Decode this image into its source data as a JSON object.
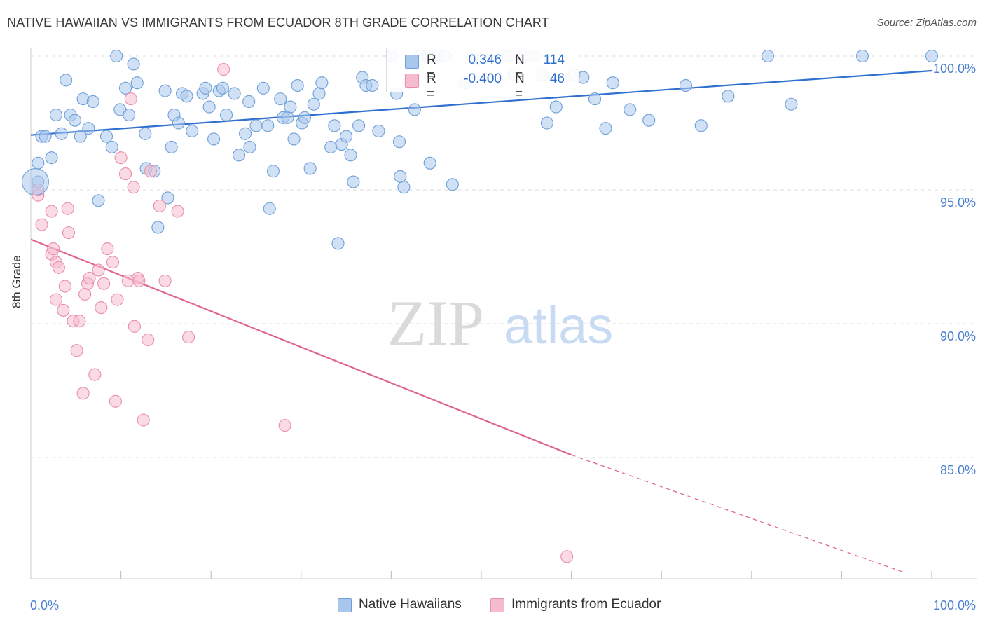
{
  "title": "NATIVE HAWAIIAN VS IMMIGRANTS FROM ECUADOR 8TH GRADE CORRELATION CHART",
  "source": "Source: ZipAtlas.com",
  "watermark": {
    "zip": "ZIP",
    "atlas": "atlas"
  },
  "colors": {
    "blue_fill": "#a9c6ec",
    "blue_stroke": "#6f9fd8",
    "blue_line": "#2f6fcf",
    "pink_fill": "#f5bccd",
    "pink_stroke": "#e98ea9",
    "pink_line": "#e06690",
    "tick_label": "#4a7fcf",
    "grid": "#dddddd"
  },
  "stats": [
    {
      "r_label": "R =",
      "r": "0.346",
      "n_label": "N =",
      "n": "114",
      "series": "blue"
    },
    {
      "r_label": "R =",
      "r": "-0.400",
      "n_label": "N =",
      "n": "46",
      "series": "pink"
    }
  ],
  "chart_data": {
    "type": "scatter",
    "title": "NATIVE HAWAIIAN VS IMMIGRANTS FROM ECUADOR 8TH GRADE CORRELATION CHART",
    "xlabel": "",
    "ylabel": "8th Grade",
    "xlim": [
      0,
      100
    ],
    "ylim": [
      80.5,
      100.8
    ],
    "x_tick_labels": [
      {
        "value": 0,
        "label": "0.0%"
      },
      {
        "value": 100,
        "label": "100.0%"
      }
    ],
    "y_ticks": [
      {
        "value": 85,
        "label": "85.0%"
      },
      {
        "value": 90,
        "label": "90.0%"
      },
      {
        "value": 95,
        "label": "95.0%"
      },
      {
        "value": 100,
        "label": "100.0%"
      }
    ],
    "grid": "horizontal dashed",
    "legend_position": "bottom",
    "series": [
      {
        "name": "Native Hawaiians",
        "color": "blue",
        "trend": {
          "x0": 0,
          "y0": 97.05,
          "x1": 100,
          "y1": 99.45
        },
        "points": [
          [
            0.8,
            96.0
          ],
          [
            0.8,
            95.3
          ],
          [
            1.2,
            97.0
          ],
          [
            1.6,
            97.0
          ],
          [
            2.3,
            96.2
          ],
          [
            2.8,
            97.8
          ],
          [
            3.4,
            97.1
          ],
          [
            3.9,
            99.1
          ],
          [
            4.4,
            97.8
          ],
          [
            4.9,
            97.6
          ],
          [
            5.5,
            97.0
          ],
          [
            5.8,
            98.4
          ],
          [
            6.4,
            97.3
          ],
          [
            6.9,
            98.3
          ],
          [
            7.5,
            94.6
          ],
          [
            8.4,
            97.0
          ],
          [
            9.0,
            96.6
          ],
          [
            9.5,
            100.0
          ],
          [
            9.9,
            98.0
          ],
          [
            10.5,
            98.8
          ],
          [
            10.9,
            97.8
          ],
          [
            11.4,
            99.7
          ],
          [
            11.8,
            99.0
          ],
          [
            12.7,
            97.1
          ],
          [
            12.8,
            95.8
          ],
          [
            13.7,
            95.7
          ],
          [
            14.1,
            93.6
          ],
          [
            14.9,
            98.7
          ],
          [
            15.2,
            94.7
          ],
          [
            15.6,
            96.6
          ],
          [
            15.9,
            97.8
          ],
          [
            16.4,
            97.5
          ],
          [
            16.8,
            98.6
          ],
          [
            17.3,
            98.5
          ],
          [
            17.9,
            97.2
          ],
          [
            19.1,
            98.6
          ],
          [
            19.4,
            98.8
          ],
          [
            19.8,
            98.1
          ],
          [
            20.3,
            96.9
          ],
          [
            20.9,
            98.7
          ],
          [
            21.3,
            98.8
          ],
          [
            21.7,
            97.8
          ],
          [
            22.6,
            98.6
          ],
          [
            23.1,
            96.3
          ],
          [
            23.8,
            97.1
          ],
          [
            24.2,
            98.3
          ],
          [
            24.3,
            96.6
          ],
          [
            25.0,
            97.4
          ],
          [
            25.8,
            98.8
          ],
          [
            26.3,
            97.4
          ],
          [
            26.5,
            94.3
          ],
          [
            26.9,
            95.7
          ],
          [
            27.7,
            98.4
          ],
          [
            28.0,
            97.7
          ],
          [
            28.5,
            97.7
          ],
          [
            28.8,
            98.1
          ],
          [
            29.2,
            96.9
          ],
          [
            29.6,
            98.9
          ],
          [
            30.1,
            97.5
          ],
          [
            30.4,
            97.7
          ],
          [
            31.0,
            95.8
          ],
          [
            31.4,
            98.2
          ],
          [
            32.0,
            98.6
          ],
          [
            32.3,
            99.0
          ],
          [
            33.3,
            96.6
          ],
          [
            33.7,
            97.4
          ],
          [
            34.1,
            93.0
          ],
          [
            34.5,
            96.7
          ],
          [
            35.0,
            97.0
          ],
          [
            35.5,
            96.3
          ],
          [
            35.8,
            95.3
          ],
          [
            36.4,
            97.4
          ],
          [
            36.8,
            99.2
          ],
          [
            37.2,
            98.9
          ],
          [
            37.9,
            98.9
          ],
          [
            38.6,
            97.2
          ],
          [
            40.1,
            100.0
          ],
          [
            40.6,
            98.6
          ],
          [
            40.9,
            96.8
          ],
          [
            41.0,
            95.5
          ],
          [
            41.4,
            95.1
          ],
          [
            42.0,
            99.0
          ],
          [
            42.6,
            98.0
          ],
          [
            43.2,
            100.0
          ],
          [
            44.0,
            100.0
          ],
          [
            44.3,
            96.0
          ],
          [
            45.3,
            100.0
          ],
          [
            46.0,
            100.0
          ],
          [
            46.8,
            95.2
          ],
          [
            48.2,
            99.0
          ],
          [
            49.6,
            99.9
          ],
          [
            53.0,
            100.0
          ],
          [
            53.6,
            99.3
          ],
          [
            54.6,
            100.0
          ],
          [
            55.8,
            100.0
          ],
          [
            56.8,
            99.3
          ],
          [
            57.3,
            97.5
          ],
          [
            58.3,
            98.1
          ],
          [
            60.3,
            99.3
          ],
          [
            61.3,
            99.2
          ],
          [
            62.6,
            98.4
          ],
          [
            63.8,
            97.3
          ],
          [
            64.6,
            99.0
          ],
          [
            66.5,
            98.0
          ],
          [
            68.6,
            97.6
          ],
          [
            72.7,
            98.9
          ],
          [
            74.4,
            97.4
          ],
          [
            77.4,
            98.5
          ],
          [
            81.8,
            100.0
          ],
          [
            84.4,
            98.2
          ],
          [
            92.3,
            100.0
          ],
          [
            100.0,
            100.0
          ]
        ]
      },
      {
        "name": "Immigrants from Ecuador",
        "color": "pink",
        "trend": {
          "x0": 0,
          "y0": 93.15,
          "x1": 60,
          "y1": 85.1,
          "dash_x1": 97,
          "dash_y1": 80.7
        },
        "points": [
          [
            0.8,
            94.8
          ],
          [
            0.8,
            95.0
          ],
          [
            1.2,
            93.7
          ],
          [
            2.3,
            94.2
          ],
          [
            2.3,
            92.6
          ],
          [
            2.5,
            92.8
          ],
          [
            2.8,
            92.3
          ],
          [
            2.8,
            90.9
          ],
          [
            3.1,
            92.1
          ],
          [
            3.6,
            90.5
          ],
          [
            3.8,
            91.4
          ],
          [
            4.1,
            94.3
          ],
          [
            4.2,
            93.4
          ],
          [
            4.7,
            90.1
          ],
          [
            5.1,
            89.0
          ],
          [
            5.4,
            90.1
          ],
          [
            5.8,
            87.4
          ],
          [
            6.0,
            91.1
          ],
          [
            6.3,
            91.5
          ],
          [
            6.5,
            91.7
          ],
          [
            7.1,
            88.1
          ],
          [
            7.5,
            92.0
          ],
          [
            7.8,
            90.6
          ],
          [
            8.1,
            91.5
          ],
          [
            8.5,
            92.8
          ],
          [
            9.1,
            92.3
          ],
          [
            9.4,
            87.1
          ],
          [
            9.6,
            90.9
          ],
          [
            10.0,
            96.2
          ],
          [
            10.5,
            95.6
          ],
          [
            10.8,
            91.6
          ],
          [
            11.1,
            98.4
          ],
          [
            11.4,
            95.1
          ],
          [
            11.5,
            89.9
          ],
          [
            11.9,
            91.7
          ],
          [
            12.0,
            91.6
          ],
          [
            12.5,
            86.4
          ],
          [
            13.0,
            89.4
          ],
          [
            13.3,
            95.7
          ],
          [
            14.3,
            94.4
          ],
          [
            14.9,
            91.6
          ],
          [
            16.3,
            94.2
          ],
          [
            17.5,
            89.5
          ],
          [
            21.4,
            99.5
          ],
          [
            28.2,
            86.2
          ],
          [
            59.5,
            81.3
          ]
        ]
      }
    ]
  }
}
